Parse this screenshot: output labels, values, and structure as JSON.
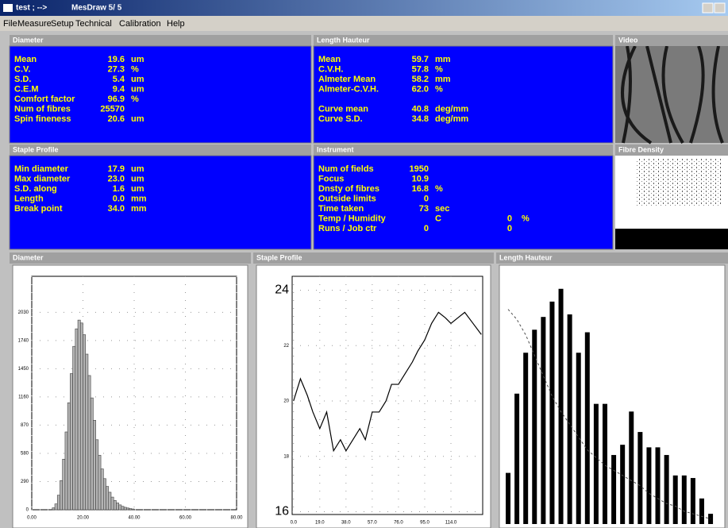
{
  "window": {
    "title": "test ; -->",
    "app": "MesDraw 5/ 5",
    "menu": [
      "File",
      "Measure",
      "Setup",
      "Technical",
      "Calibration",
      "Help"
    ]
  },
  "panels": [
    {
      "title": "Diameter",
      "groups": [
        [
          {
            "label": "Mean",
            "value": "19.6",
            "unit": "um"
          },
          {
            "label": "C.V.",
            "value": "27.3",
            "unit": "%"
          },
          {
            "label": "S.D.",
            "value": "5.4",
            "unit": "um"
          },
          {
            "label": "C.E.M",
            "value": "9.4",
            "unit": "um"
          },
          {
            "label": "Comfort factor",
            "value": "96.9",
            "unit": "%"
          },
          {
            "label": "Num of fibres",
            "value": "25570"
          },
          {
            "label": "Spin fineness",
            "value": "20.6",
            "unit": "um"
          }
        ]
      ]
    },
    {
      "title": "Length Hauteur",
      "groups": [
        [
          {
            "label": "Mean",
            "value": "59.7",
            "unit": "mm"
          },
          {
            "label": "C.V.H.",
            "value": "57.8",
            "unit": "%"
          },
          {
            "label": "Almeter Mean",
            "value": "58.2",
            "unit": "mm"
          },
          {
            "label": "Almeter-C.V.H.",
            "value": "62.0",
            "unit": "%"
          }
        ],
        [
          {
            "label": "Curve mean",
            "value": "40.8",
            "unit": "deg/mm"
          },
          {
            "label": "Curve S.D.",
            "value": "34.8",
            "unit": "deg/mm"
          }
        ]
      ]
    },
    {
      "title": "Video"
    },
    {
      "title": "Staple Profile",
      "groups": [
        [
          {
            "label": "Min diameter",
            "value": "17.9",
            "unit": "um"
          },
          {
            "label": "Max diameter",
            "value": "23.0",
            "unit": "um"
          },
          {
            "label": "S.D. along",
            "value": "1.6",
            "unit": "um"
          },
          {
            "label": "Length",
            "value": "0.0",
            "unit": "mm"
          },
          {
            "label": "Break point",
            "value": "34.0",
            "unit": "mm"
          }
        ]
      ]
    },
    {
      "title": "Instrument",
      "groups": [
        [
          {
            "label": "Num of fields",
            "value": "1950"
          },
          {
            "label": "Focus",
            "value": "10.9"
          },
          {
            "label": "Dnsty of fibres",
            "value": "16.8",
            "unit": "%"
          },
          {
            "label": "Outside limits",
            "value": "0"
          },
          {
            "label": "Time taken",
            "value": "73",
            "unit": "sec"
          },
          {
            "label": "Temp / Humidity",
            "unit": "C",
            "value2": "0",
            "unit2": "%"
          },
          {
            "label": "Runs / Job ctr",
            "value": "0",
            "value2": "0"
          }
        ]
      ]
    },
    {
      "title": "Fibre Density"
    }
  ],
  "chart_data": [
    {
      "type": "histogram",
      "title": "Diameter",
      "color": "#b4b4b4",
      "bins": [
        8,
        9,
        10,
        11,
        12,
        13,
        14,
        15,
        16,
        17,
        18,
        19,
        20,
        21,
        22,
        23,
        24,
        25,
        26,
        27,
        28,
        29,
        30,
        31,
        32,
        33,
        34,
        35,
        36,
        37,
        38,
        39,
        40
      ],
      "values": [
        20,
        60,
        150,
        300,
        520,
        800,
        1100,
        1400,
        1680,
        1860,
        1950,
        1920,
        1800,
        1600,
        1380,
        1150,
        920,
        720,
        560,
        420,
        320,
        240,
        180,
        130,
        95,
        70,
        50,
        35,
        25,
        18,
        12,
        8
      ],
      "xlim": [
        0,
        80
      ],
      "xticks": [
        {
          "value": 0,
          "label": "0.00"
        },
        {
          "value": 20,
          "label": "20.00"
        },
        {
          "value": 40,
          "label": "40.00"
        },
        {
          "value": 60,
          "label": "60.00"
        },
        {
          "value": 80,
          "label": "80.00"
        }
      ],
      "ylim": [
        0,
        2400
      ],
      "yticks": [
        0,
        290,
        580,
        870,
        1160,
        1450,
        1740,
        2030
      ],
      "grid": true
    },
    {
      "type": "line",
      "title": "Staple Profile",
      "color": "#000000",
      "x": [
        0,
        5,
        10,
        14,
        19,
        24,
        29,
        34,
        38,
        43,
        48,
        52,
        57,
        62,
        67,
        71,
        76,
        81,
        86,
        90,
        95,
        100,
        105,
        110,
        114,
        119,
        124,
        130,
        136
      ],
      "values": [
        20.0,
        20.8,
        20.2,
        19.6,
        19.0,
        19.6,
        18.2,
        18.6,
        18.2,
        18.6,
        19.0,
        18.6,
        19.6,
        19.6,
        20.0,
        20.6,
        20.6,
        21.0,
        21.4,
        21.8,
        22.2,
        22.8,
        23.2,
        23.0,
        22.8,
        23.0,
        23.2,
        22.8,
        22.4
      ],
      "xlim": [
        -1,
        137
      ],
      "xticks": [
        {
          "value": 0,
          "label": "0.0"
        },
        {
          "value": 19,
          "label": "19.0"
        },
        {
          "value": 38,
          "label": "38.0"
        },
        {
          "value": 57,
          "label": "57.0"
        },
        {
          "value": 76,
          "label": "76.0"
        },
        {
          "value": 95,
          "label": "95.0"
        },
        {
          "value": 114,
          "label": "114.0"
        }
      ],
      "ylim": [
        15.9,
        24.5
      ],
      "yticks": [
        16,
        18,
        20,
        22,
        24
      ],
      "grid": true
    },
    {
      "type": "bar",
      "title": "Length Hauteur",
      "ylim": [
        0,
        100
      ],
      "series": [
        {
          "color": "#000000",
          "values": [
            20,
            51,
            67,
            76,
            81,
            87,
            92,
            82,
            67,
            75,
            47,
            47,
            27,
            31,
            44,
            36,
            30,
            30,
            27,
            19,
            19,
            18,
            10,
            4
          ]
        },
        {
          "color": "#505050",
          "style": "dashed",
          "values": [
            84,
            80,
            74,
            66,
            58,
            50,
            44,
            39,
            34,
            29,
            26,
            23,
            21,
            19,
            17,
            15,
            12,
            10,
            8,
            7,
            5,
            4,
            3,
            2
          ]
        }
      ]
    }
  ]
}
